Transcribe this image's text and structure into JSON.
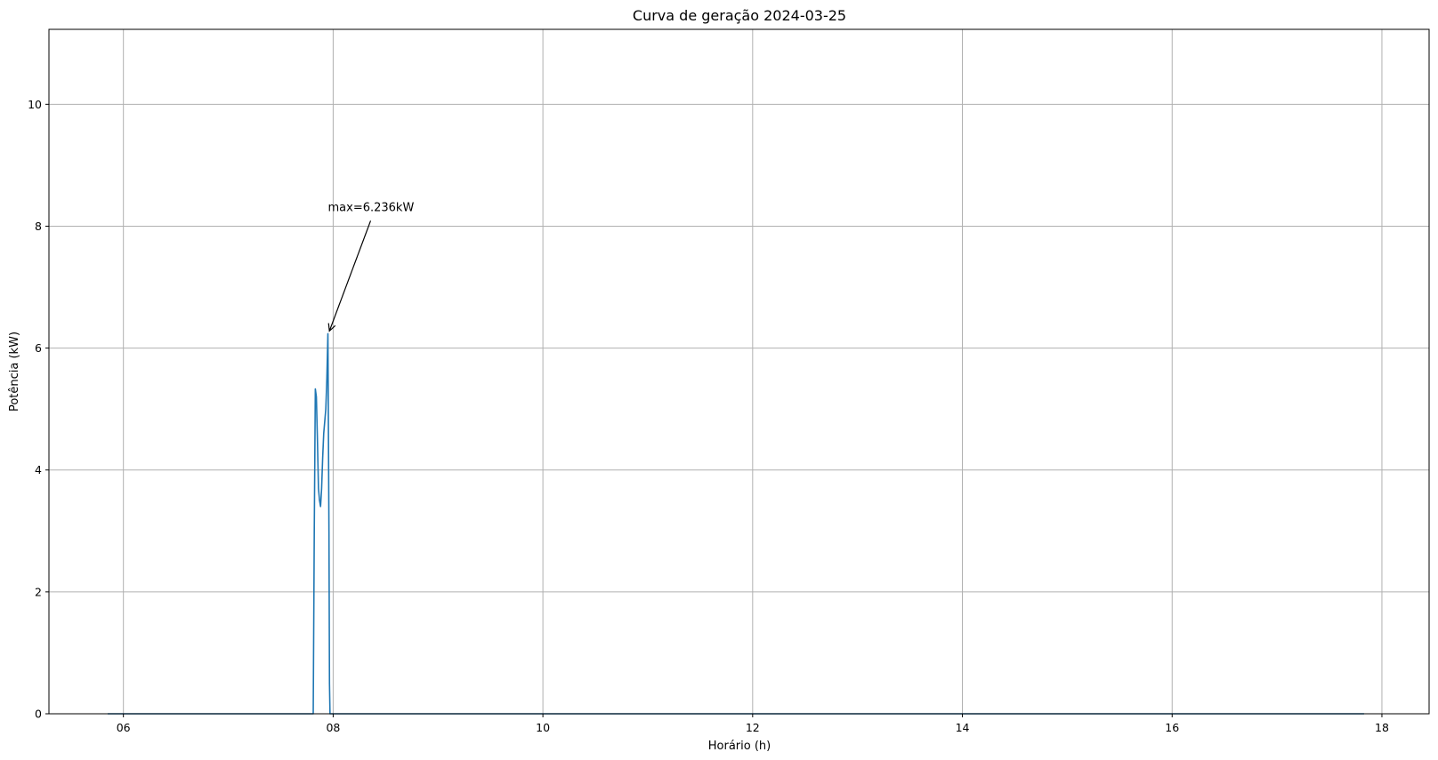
{
  "chart_data": {
    "type": "line",
    "title": "Curva de geração 2024-03-25",
    "xlabel": "Horário (h)",
    "ylabel": "Potência (kW)",
    "xlim": [
      5.29,
      18.45
    ],
    "ylim": [
      0,
      11.23
    ],
    "x_ticks": [
      6,
      8,
      10,
      12,
      14,
      16,
      18
    ],
    "x_tick_labels": [
      "06",
      "08",
      "10",
      "12",
      "14",
      "16",
      "18"
    ],
    "y_ticks": [
      0,
      2,
      4,
      6,
      8,
      10
    ],
    "y_tick_labels": [
      "0",
      "2",
      "4",
      "6",
      "8",
      "10"
    ],
    "grid": true,
    "line_color": "#1f77b4",
    "series": [
      {
        "x": [
          5.85,
          7.81,
          7.82,
          7.83,
          7.84,
          7.85,
          7.86,
          7.87,
          7.88,
          7.89,
          7.9,
          7.91,
          7.92,
          7.93,
          7.94,
          7.95,
          7.96,
          7.965,
          7.97,
          7.98,
          17.83
        ],
        "y": [
          0,
          0,
          3.0,
          5.33,
          5.2,
          4.5,
          3.7,
          3.5,
          3.4,
          3.7,
          4.2,
          4.6,
          4.8,
          5.0,
          5.5,
          6.236,
          3.0,
          0.5,
          0,
          0,
          0
        ]
      }
    ],
    "annotations": [
      {
        "text": "max=6.236kW",
        "point": [
          7.96,
          6.236
        ],
        "text_at": [
          7.95,
          8.25
        ]
      }
    ]
  }
}
